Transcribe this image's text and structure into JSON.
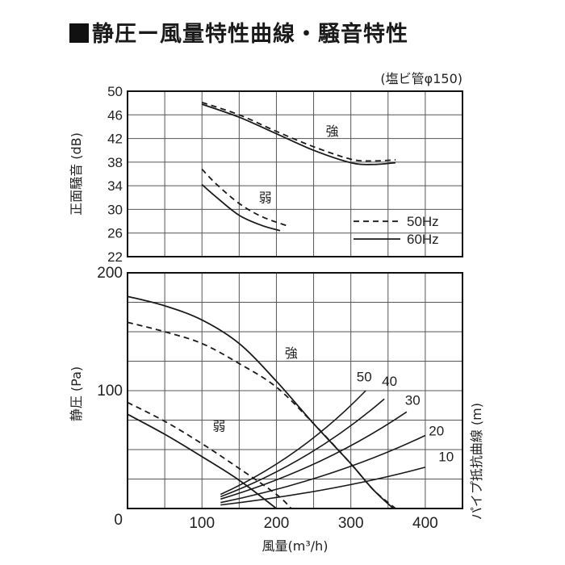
{
  "title": "静圧ー風量特性曲線・騒音特性",
  "chart_data": [
    {
      "type": "line",
      "panel": "noise",
      "note": "(塩ビ管φ150)",
      "ylabel": "正面騒音 (dB)",
      "ylim": [
        22,
        50
      ],
      "xlim": [
        0,
        450
      ],
      "yticks": [
        22,
        26,
        30,
        34,
        38,
        42,
        46,
        50
      ],
      "grid": true,
      "legend_position": "bottom-right",
      "legend": [
        {
          "label": "50Hz",
          "style": "dashed"
        },
        {
          "label": "60Hz",
          "style": "solid"
        }
      ],
      "series": [
        {
          "name": "強 50Hz",
          "style": "dashed",
          "label": "強",
          "x": [
            100,
            150,
            200,
            250,
            300,
            330,
            360
          ],
          "y": [
            48.1,
            46.0,
            43.2,
            40.6,
            38.5,
            38.2,
            38.4
          ]
        },
        {
          "name": "強 60Hz",
          "style": "solid",
          "x": [
            100,
            150,
            200,
            250,
            300,
            330,
            360
          ],
          "y": [
            47.8,
            45.6,
            42.8,
            40.0,
            37.9,
            37.6,
            37.9
          ]
        },
        {
          "name": "弱 50Hz",
          "style": "dashed",
          "label": "弱",
          "x": [
            100,
            120,
            150,
            180,
            215
          ],
          "y": [
            36.8,
            34.2,
            31.0,
            28.8,
            27.2
          ]
        },
        {
          "name": "弱 60Hz",
          "style": "solid",
          "x": [
            100,
            120,
            150,
            180,
            205
          ],
          "y": [
            34.2,
            32.0,
            29.0,
            27.3,
            26.4
          ]
        }
      ]
    },
    {
      "type": "line",
      "panel": "pressure",
      "xlabel": "風量(m³/h)",
      "ylabel": "静圧 (Pa)",
      "ylabel_right": "パイプ抵抗曲線 (m)",
      "xlim": [
        0,
        450
      ],
      "ylim": [
        0,
        200
      ],
      "xticks": [
        0,
        100,
        200,
        300,
        400
      ],
      "yticks": [
        0,
        100,
        200
      ],
      "grid": true,
      "series": [
        {
          "name": "強 60Hz",
          "style": "solid",
          "label": "強",
          "x": [
            0,
            50,
            100,
            150,
            200,
            250,
            300,
            330,
            357
          ],
          "y": [
            180,
            172,
            160,
            140,
            108,
            72,
            38,
            16,
            0
          ]
        },
        {
          "name": "強 50Hz",
          "style": "dashed",
          "x": [
            0,
            50,
            100,
            150,
            200,
            250,
            300,
            330,
            360
          ],
          "y": [
            158,
            150,
            140,
            123,
            103,
            72,
            38,
            16,
            0
          ]
        },
        {
          "name": "弱 50Hz",
          "style": "dashed",
          "label": "弱",
          "x": [
            0,
            50,
            100,
            150,
            200,
            220
          ],
          "y": [
            90,
            74,
            55,
            34,
            12,
            0
          ]
        },
        {
          "name": "弱 60Hz",
          "style": "solid",
          "x": [
            0,
            50,
            100,
            150,
            200
          ],
          "y": [
            80,
            63,
            44,
            24,
            0
          ]
        }
      ],
      "pipe_resistance_curves": [
        {
          "label": "50",
          "x": [
            125,
            320
          ],
          "y": [
            12,
            100
          ]
        },
        {
          "label": "40",
          "x": [
            125,
            345
          ],
          "y": [
            10,
            93
          ]
        },
        {
          "label": "30",
          "x": [
            125,
            375
          ],
          "y": [
            8,
            82
          ]
        },
        {
          "label": "20",
          "x": [
            125,
            400
          ],
          "y": [
            5,
            62
          ]
        },
        {
          "label": "10",
          "x": [
            125,
            400
          ],
          "y": [
            3,
            35
          ]
        }
      ]
    }
  ]
}
